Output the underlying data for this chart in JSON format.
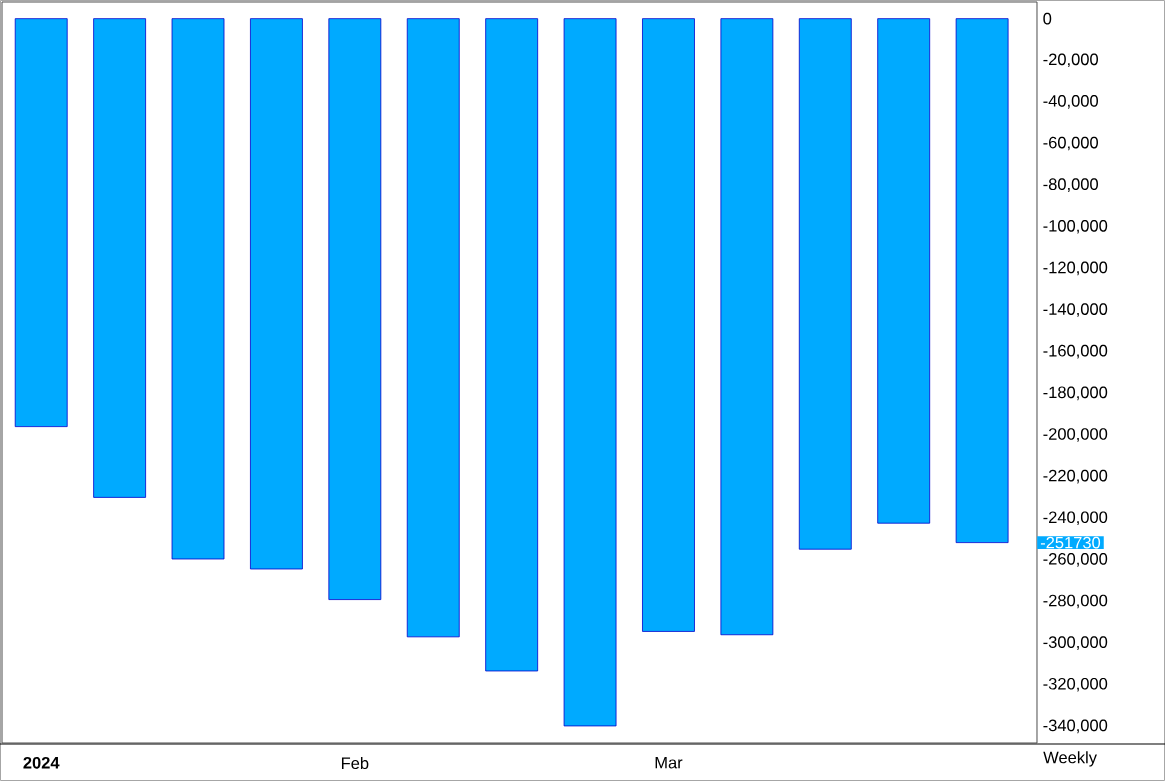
{
  "chart_data": {
    "type": "bar",
    "categories": [
      "**2024**",
      null,
      null,
      null,
      "Feb",
      null,
      null,
      null,
      "Mar",
      null,
      null,
      null,
      null
    ],
    "values": [
      -196000,
      -230000,
      -259600,
      -264400,
      -279100,
      -297000,
      -313400,
      -339800,
      -294400,
      -296000,
      -254900,
      -242400,
      -251730
    ],
    "color": "#00aaff",
    "ylim": [
      -348000,
      8000
    ],
    "yticks": [
      0,
      {
        "value": -20000,
        "label": "-20,000"
      },
      {
        "value": -40000,
        "label": "-40,000"
      },
      {
        "value": -60000,
        "label": "-60,000"
      },
      {
        "value": -80000,
        "label": "-80,000"
      },
      {
        "value": -100000,
        "label": "-100,000"
      },
      {
        "value": -120000,
        "label": "-120,000"
      },
      {
        "value": -140000,
        "label": "-140,000"
      },
      {
        "value": -160000,
        "label": "-160,000"
      },
      {
        "value": -180000,
        "label": "-180,000"
      },
      {
        "value": -200000,
        "label": "-200,000"
      },
      {
        "value": -220000,
        "label": "-220,000"
      },
      {
        "value": -240000,
        "label": "-240,000"
      },
      {
        "value": -260000,
        "label": "-260,000"
      },
      {
        "value": -280000,
        "label": "-280,000"
      },
      {
        "value": -300000,
        "label": "-300,000"
      },
      {
        "value": -320000,
        "label": "-320,000"
      },
      {
        "value": -340000,
        "label": "-340,000"
      }
    ],
    "annotations": [
      "-251730",
      "Weekly"
    ]
  }
}
